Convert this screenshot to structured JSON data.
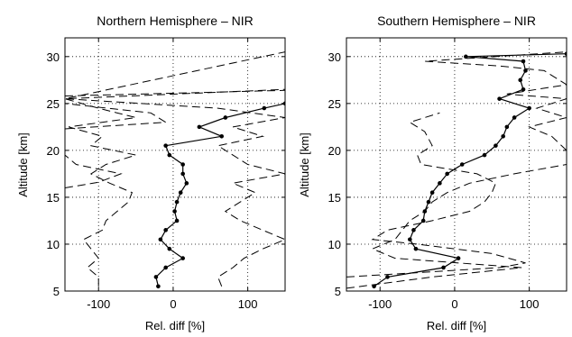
{
  "chart_data": [
    {
      "type": "line",
      "title": "Northern Hemisphere – NIR",
      "xlabel": "Rel. diff [%]",
      "ylabel": "Altitude [km]",
      "xlim": [
        -145,
        150
      ],
      "ylim": [
        5,
        32
      ],
      "xticks": [
        -100,
        0,
        100
      ],
      "yticks": [
        5,
        10,
        15,
        20,
        25,
        30
      ],
      "grid": true,
      "series": [
        {
          "style": "solid-dots",
          "points": [
            [
              -20,
              5.5
            ],
            [
              -23,
              6.5
            ],
            [
              -10,
              7.5
            ],
            [
              13,
              8.5
            ],
            [
              -5,
              9.5
            ],
            [
              -17,
              10.5
            ],
            [
              -10,
              11.5
            ],
            [
              5,
              12.5
            ],
            [
              2,
              13.5
            ],
            [
              5,
              14.5
            ],
            [
              10,
              15.5
            ],
            [
              18,
              16.5
            ],
            [
              13,
              17.5
            ],
            [
              13,
              18.5
            ],
            [
              -5,
              19.5
            ],
            [
              -10,
              20.5
            ],
            [
              65,
              21.5
            ],
            [
              35,
              22.5
            ],
            [
              70,
              23.5
            ],
            [
              122,
              24.5
            ],
            [
              150,
              25
            ]
          ]
        },
        {
          "style": "dashed",
          "points": [
            [
              -100,
              5.5
            ],
            [
              -100,
              6.5
            ],
            [
              -115,
              7.5
            ],
            [
              -100,
              8.5
            ],
            [
              -110,
              9.5
            ],
            [
              -120,
              10.5
            ],
            [
              -95,
              11.5
            ],
            [
              -90,
              12.5
            ],
            [
              -75,
              13.5
            ],
            [
              -60,
              14.5
            ],
            [
              -55,
              15.5
            ],
            [
              -85,
              16.5
            ],
            [
              -110,
              17.5
            ],
            [
              -90,
              18.5
            ],
            [
              -50,
              19.5
            ],
            [
              -110,
              20.5
            ],
            [
              -95,
              21.5
            ],
            [
              -140,
              22.5
            ],
            [
              -50,
              23.5
            ],
            [
              -100,
              24.5
            ],
            [
              -145,
              25.5
            ],
            [
              150,
              26.5
            ]
          ]
        },
        {
          "style": "dashed",
          "points": [
            [
              65,
              5.5
            ],
            [
              60,
              6.5
            ],
            [
              80,
              7.5
            ],
            [
              95,
              8.5
            ],
            [
              120,
              9.5
            ],
            [
              150,
              10.5
            ],
            [
              120,
              11.5
            ],
            [
              90,
              12.5
            ],
            [
              70,
              13.5
            ],
            [
              90,
              14.5
            ],
            [
              110,
              15.5
            ],
            [
              80,
              16.5
            ],
            [
              150,
              17.5
            ],
            [
              100,
              18.5
            ],
            [
              80,
              19.5
            ],
            [
              60,
              20.5
            ],
            [
              120,
              21.5
            ],
            [
              80,
              22.5
            ],
            [
              150,
              23.5
            ],
            [
              60,
              24.5
            ],
            [
              -145,
              25.5
            ],
            [
              150,
              30.5
            ]
          ]
        },
        {
          "style": "dashed",
          "points": [
            [
              -145,
              16
            ],
            [
              -100,
              16.6
            ],
            [
              -70,
              17.5
            ],
            [
              -130,
              18.5
            ],
            [
              -145,
              19.5
            ]
          ]
        },
        {
          "style": "dashed",
          "points": [
            [
              -145,
              22.3
            ],
            [
              -10,
              23
            ],
            [
              -30,
              24
            ],
            [
              -145,
              25
            ]
          ]
        },
        {
          "style": "dashed",
          "points": [
            [
              -145,
              25.8
            ],
            [
              150,
              26.4
            ]
          ]
        }
      ]
    },
    {
      "type": "line",
      "title": "Southern Hemisphere – NIR",
      "xlabel": "Rel. diff [%]",
      "ylabel": "Altitude [km]",
      "xlim": [
        -145,
        150
      ],
      "ylim": [
        5,
        32
      ],
      "xticks": [
        -100,
        0,
        100
      ],
      "yticks": [
        5,
        10,
        15,
        20,
        25,
        30
      ],
      "grid": true,
      "series": [
        {
          "style": "solid-dots",
          "points": [
            [
              -108,
              5.5
            ],
            [
              -90,
              6.5
            ],
            [
              -15,
              7.5
            ],
            [
              5,
              8.5
            ],
            [
              -52,
              9.5
            ],
            [
              -60,
              10.5
            ],
            [
              -55,
              11.5
            ],
            [
              -42,
              12.5
            ],
            [
              -40,
              13.5
            ],
            [
              -35,
              14.5
            ],
            [
              -30,
              15.5
            ],
            [
              -20,
              16.5
            ],
            [
              -10,
              17.5
            ],
            [
              10,
              18.5
            ],
            [
              40,
              19.5
            ],
            [
              55,
              20.5
            ],
            [
              65,
              21.5
            ],
            [
              70,
              22.5
            ],
            [
              80,
              23.5
            ],
            [
              100,
              24.5
            ],
            [
              60,
              25.5
            ],
            [
              92,
              26.5
            ],
            [
              88,
              27.5
            ],
            [
              95,
              28.5
            ],
            [
              92,
              29.5
            ],
            [
              15,
              30
            ],
            [
              150,
              30.3
            ]
          ]
        },
        {
          "style": "dashed",
          "points": [
            [
              -145,
              5.3
            ],
            [
              -30,
              6.5
            ],
            [
              90,
              7.5
            ],
            [
              -80,
              8.5
            ],
            [
              -110,
              9.5
            ],
            [
              -80,
              10.5
            ],
            [
              -70,
              11.5
            ],
            [
              -60,
              12.5
            ],
            [
              -40,
              13.5
            ],
            [
              -30,
              14.5
            ],
            [
              -10,
              15.5
            ],
            [
              20,
              16.5
            ],
            [
              80,
              17.5
            ],
            [
              150,
              18.5
            ]
          ]
        },
        {
          "style": "dashed",
          "points": [
            [
              -145,
              6.5
            ],
            [
              60,
              7.5
            ],
            [
              95,
              8
            ],
            [
              50,
              9
            ],
            [
              -50,
              10
            ],
            [
              -110,
              10.5
            ],
            [
              -90,
              11.5
            ],
            [
              -30,
              12.5
            ],
            [
              20,
              13.5
            ],
            [
              40,
              14.5
            ],
            [
              50,
              15.5
            ],
            [
              55,
              16.5
            ],
            [
              30,
              17.5
            ],
            [
              -45,
              18.5
            ],
            [
              -50,
              19.5
            ],
            [
              -30,
              20.5
            ],
            [
              -40,
              22
            ],
            [
              -60,
              23
            ],
            [
              -20,
              24
            ]
          ]
        },
        {
          "style": "dashed",
          "points": [
            [
              150,
              20
            ],
            [
              130,
              21.5
            ],
            [
              100,
              22.5
            ],
            [
              150,
              23.5
            ],
            [
              110,
              24.5
            ],
            [
              150,
              25.5
            ],
            [
              70,
              26
            ],
            [
              150,
              27
            ],
            [
              120,
              28.5
            ],
            [
              60,
              29
            ],
            [
              -40,
              29.5
            ],
            [
              150,
              30.5
            ]
          ]
        }
      ]
    }
  ]
}
